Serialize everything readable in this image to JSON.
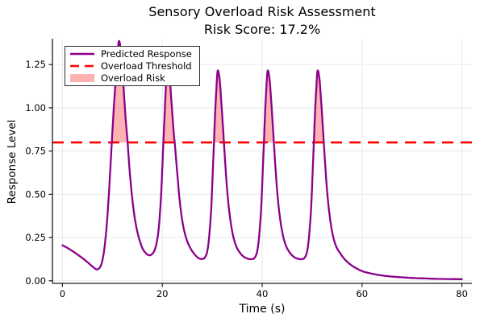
{
  "title": {
    "line1": "Sensory Overload Risk Assessment",
    "line2": "Risk Score: 17.2%"
  },
  "risk_score_percent": 17.2,
  "colors": {
    "response_line": "#8B008B",
    "threshold_line": "#FF0000",
    "risk_fill": "rgba(255,0,0,0.30)",
    "grid": "#E9E9E9",
    "axis": "#1A1A1A",
    "text": "#000000",
    "background": "#FFFFFF"
  },
  "chart_data": {
    "type": "line",
    "title": "Sensory Overload Risk Assessment",
    "subtitle": "Risk Score: 17.2%",
    "xlabel": "Time (s)",
    "ylabel": "Response Level",
    "xlim": [
      -2,
      82
    ],
    "ylim": [
      -0.015,
      1.4
    ],
    "xticks": [
      0,
      20,
      40,
      60,
      80
    ],
    "xtick_labels": [
      "0",
      "20",
      "40",
      "60",
      "80"
    ],
    "yticks": [
      0.0,
      0.25,
      0.5,
      0.75,
      1.0,
      1.25
    ],
    "ytick_labels": [
      "0.00",
      "0.25",
      "0.50",
      "0.75",
      "1.00",
      "1.25"
    ],
    "grid": true,
    "threshold": 0.8,
    "risk_intervals": [
      [
        9.9,
        13.0
      ],
      [
        20.3,
        22.5
      ],
      [
        30.4,
        32.3
      ],
      [
        40.4,
        42.3
      ],
      [
        50.4,
        52.3
      ]
    ],
    "legend": {
      "position": "top-left",
      "entries": [
        {
          "label": "Predicted Response",
          "swatch": "line",
          "color": "#8B008B"
        },
        {
          "label": "Overload Threshold",
          "swatch": "dashed-line",
          "color": "#FF0000"
        },
        {
          "label": "Overload Risk",
          "swatch": "patch",
          "color": "rgba(255,0,0,0.30)"
        }
      ]
    },
    "series": [
      {
        "name": "Predicted Response",
        "color": "#8B008B",
        "points": [
          [
            0,
            0.205
          ],
          [
            1,
            0.19
          ],
          [
            2,
            0.172
          ],
          [
            3,
            0.152
          ],
          [
            4,
            0.131
          ],
          [
            5,
            0.108
          ],
          [
            5.7,
            0.09
          ],
          [
            6.3,
            0.076
          ],
          [
            6.8,
            0.066
          ],
          [
            7.3,
            0.07
          ],
          [
            7.7,
            0.088
          ],
          [
            8.1,
            0.13
          ],
          [
            8.5,
            0.21
          ],
          [
            8.9,
            0.33
          ],
          [
            9.3,
            0.5
          ],
          [
            9.7,
            0.7
          ],
          [
            10.0,
            0.86
          ],
          [
            10.4,
            1.05
          ],
          [
            10.8,
            1.22
          ],
          [
            11.3,
            1.385
          ],
          [
            11.8,
            1.3
          ],
          [
            12.2,
            1.14
          ],
          [
            12.6,
            0.96
          ],
          [
            13.0,
            0.82
          ],
          [
            13.4,
            0.66
          ],
          [
            13.9,
            0.5
          ],
          [
            14.5,
            0.36
          ],
          [
            15.2,
            0.26
          ],
          [
            16.0,
            0.19
          ],
          [
            16.7,
            0.16
          ],
          [
            17.3,
            0.148
          ],
          [
            17.9,
            0.153
          ],
          [
            18.5,
            0.18
          ],
          [
            19.0,
            0.24
          ],
          [
            19.4,
            0.34
          ],
          [
            19.8,
            0.52
          ],
          [
            20.1,
            0.72
          ],
          [
            20.4,
            0.92
          ],
          [
            20.7,
            1.11
          ],
          [
            21.0,
            1.27
          ],
          [
            21.4,
            1.21
          ],
          [
            21.8,
            1.05
          ],
          [
            22.2,
            0.89
          ],
          [
            22.6,
            0.76
          ],
          [
            23.0,
            0.62
          ],
          [
            23.5,
            0.46
          ],
          [
            24.1,
            0.33
          ],
          [
            24.8,
            0.245
          ],
          [
            25.6,
            0.19
          ],
          [
            26.4,
            0.155
          ],
          [
            27.2,
            0.132
          ],
          [
            27.9,
            0.126
          ],
          [
            28.5,
            0.133
          ],
          [
            29.0,
            0.17
          ],
          [
            29.4,
            0.26
          ],
          [
            29.8,
            0.42
          ],
          [
            30.1,
            0.62
          ],
          [
            30.35,
            0.8
          ],
          [
            30.6,
            0.98
          ],
          [
            30.85,
            1.12
          ],
          [
            31.1,
            1.215
          ],
          [
            31.5,
            1.16
          ],
          [
            31.9,
            1.0
          ],
          [
            32.3,
            0.82
          ],
          [
            32.6,
            0.68
          ],
          [
            33.0,
            0.52
          ],
          [
            33.5,
            0.38
          ],
          [
            34.1,
            0.27
          ],
          [
            34.8,
            0.2
          ],
          [
            35.6,
            0.16
          ],
          [
            36.4,
            0.137
          ],
          [
            37.2,
            0.127
          ],
          [
            37.9,
            0.125
          ],
          [
            38.5,
            0.133
          ],
          [
            39.0,
            0.17
          ],
          [
            39.4,
            0.26
          ],
          [
            39.8,
            0.42
          ],
          [
            40.1,
            0.62
          ],
          [
            40.35,
            0.8
          ],
          [
            40.6,
            0.98
          ],
          [
            40.85,
            1.12
          ],
          [
            41.1,
            1.215
          ],
          [
            41.5,
            1.16
          ],
          [
            41.9,
            1.0
          ],
          [
            42.3,
            0.82
          ],
          [
            42.6,
            0.68
          ],
          [
            43.0,
            0.52
          ],
          [
            43.5,
            0.38
          ],
          [
            44.1,
            0.27
          ],
          [
            44.8,
            0.2
          ],
          [
            45.6,
            0.16
          ],
          [
            46.4,
            0.137
          ],
          [
            47.2,
            0.127
          ],
          [
            47.9,
            0.125
          ],
          [
            48.5,
            0.133
          ],
          [
            49.0,
            0.17
          ],
          [
            49.4,
            0.26
          ],
          [
            49.8,
            0.42
          ],
          [
            50.1,
            0.62
          ],
          [
            50.35,
            0.8
          ],
          [
            50.6,
            0.98
          ],
          [
            50.85,
            1.12
          ],
          [
            51.1,
            1.215
          ],
          [
            51.5,
            1.16
          ],
          [
            51.9,
            1.0
          ],
          [
            52.3,
            0.82
          ],
          [
            52.6,
            0.68
          ],
          [
            53.0,
            0.52
          ],
          [
            53.5,
            0.38
          ],
          [
            54.1,
            0.27
          ],
          [
            54.8,
            0.2
          ],
          [
            55.6,
            0.16
          ],
          [
            56.5,
            0.125
          ],
          [
            57.5,
            0.098
          ],
          [
            58.5,
            0.078
          ],
          [
            60,
            0.056
          ],
          [
            61.5,
            0.044
          ],
          [
            63,
            0.035
          ],
          [
            65,
            0.027
          ],
          [
            67,
            0.022
          ],
          [
            69,
            0.018
          ],
          [
            71,
            0.015
          ],
          [
            73,
            0.013
          ],
          [
            75,
            0.011
          ],
          [
            77.5,
            0.01
          ],
          [
            80,
            0.009
          ]
        ]
      }
    ]
  }
}
